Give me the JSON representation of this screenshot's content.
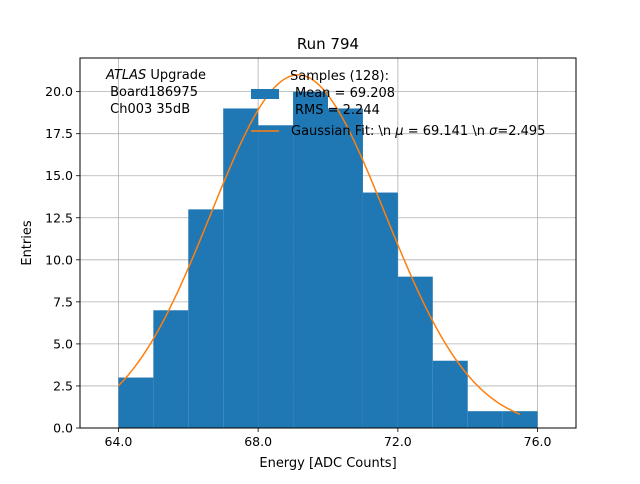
{
  "chart_data": {
    "type": "bar",
    "title": "Run 794",
    "xlabel": "Energy [ADC Counts]",
    "ylabel": "Entries",
    "xlim": [
      62.9,
      77.1
    ],
    "ylim": [
      0,
      22.0
    ],
    "grid": true,
    "x_ticks": [
      64.0,
      68.0,
      72.0,
      76.0
    ],
    "x_tick_labels": [
      "64.0",
      "68.0",
      "72.0",
      "76.0"
    ],
    "y_ticks": [
      0,
      2.5,
      5,
      7.5,
      10,
      12.5,
      15,
      17.5,
      20
    ],
    "y_tick_labels": [
      "0.0",
      "2.5",
      "5.0",
      "7.5",
      "10.0",
      "12.5",
      "15.0",
      "17.5",
      "20.0"
    ],
    "histogram": {
      "bin_edges": [
        64,
        65,
        66,
        67,
        68,
        69,
        70,
        71,
        72,
        73,
        74,
        75,
        76
      ],
      "counts": [
        3,
        7,
        13,
        19,
        18,
        20,
        19,
        14,
        9,
        4,
        1,
        1
      ],
      "color": "#1f77b4"
    },
    "fit": {
      "label": "Gaussian Fit: \\n $\\mu$ = 69.141 \\n $\\sigma$=2.495",
      "mean": 69.141,
      "sigma": 2.495,
      "amplitude": 21.0,
      "x_range": [
        64.0,
        75.5
      ],
      "color": "#ff7f0e"
    },
    "annotation": {
      "line1_italic": "ATLAS",
      "line1_rest": " Upgrade",
      "line2": " Board186975",
      "line3": " Ch003 35dB"
    },
    "legend": {
      "placement": "top-center",
      "hist_label_lines": [
        "Samples (128):",
        "Mean = 69.208",
        "RMS = 2.244"
      ],
      "fit_label_prefix": "Gaussian Fit: \\n ",
      "fit_mu": "μ",
      "fit_mid": " = 69.141 \\n ",
      "fit_sigma": "σ",
      "fit_suffix": "=2.495"
    }
  }
}
